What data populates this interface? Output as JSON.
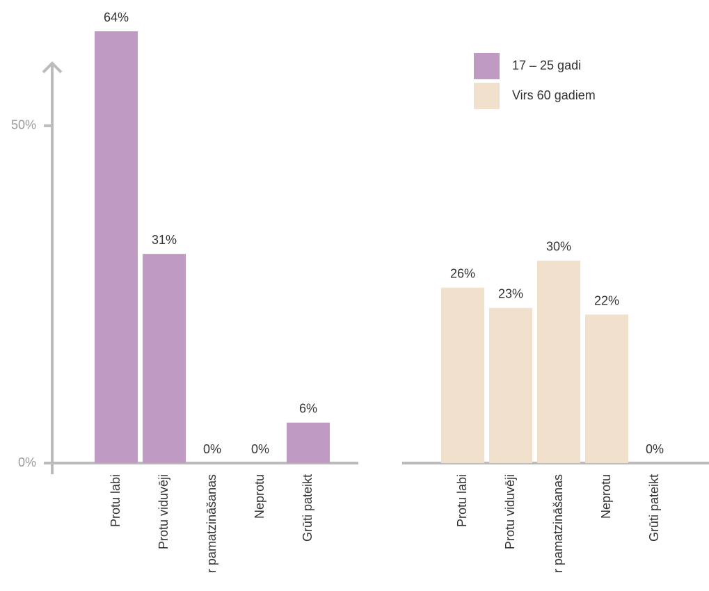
{
  "chart_data": [
    {
      "type": "bar",
      "categories": [
        "Protu labi",
        "Protu viduvēji",
        "r pamatzināšanas",
        "Neprotu",
        "Grūti pateikt"
      ],
      "series": [
        {
          "name": "17 – 25 gadi",
          "color": "#bf9bc4",
          "values": [
            64,
            31,
            0,
            0,
            6
          ],
          "value_labels": [
            "64%",
            "31%",
            "0%",
            "0%",
            "6%"
          ]
        }
      ],
      "ylim": [
        0,
        64
      ],
      "yticks": [
        {
          "value": 0,
          "label": "0%"
        },
        {
          "value": 50,
          "label": "50%"
        }
      ]
    },
    {
      "type": "bar",
      "categories": [
        "Protu labi",
        "Protu viduvēji",
        "r pamatzināšanas",
        "Neprotu",
        "Grūti pateikt"
      ],
      "series": [
        {
          "name": "Virs 60 gadiem",
          "color": "#f1e1cc",
          "values": [
            26,
            23,
            30,
            22,
            0
          ],
          "value_labels": [
            "26%",
            "23%",
            "30%",
            "22%",
            "0%"
          ]
        }
      ],
      "ylim": [
        0,
        64
      ]
    }
  ]
}
